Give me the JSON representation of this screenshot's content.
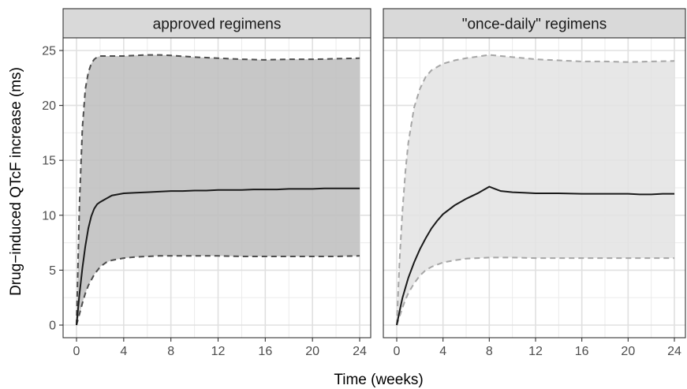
{
  "chart_data": {
    "type": "area",
    "xlabel": "Time (weeks)",
    "ylabel": "Drug−induced QTcF increase (ms)",
    "xlim": [
      0,
      24
    ],
    "ylim": [
      0,
      25
    ],
    "x_ticks": [
      "0",
      "4",
      "8",
      "12",
      "16",
      "20",
      "24"
    ],
    "y_ticks": [
      "0",
      "5",
      "10",
      "15",
      "20",
      "25"
    ],
    "grid": true,
    "panels": [
      {
        "strip_label": "approved regimens",
        "ribbon_color": "#bdbdbd",
        "bound_color": "#4d4d4d",
        "median_color": "#1a1a1a",
        "series": [
          {
            "role": "median",
            "x": [
              0,
              0.25,
              0.5,
              0.75,
              1,
              1.25,
              1.5,
              1.75,
              2,
              2.5,
              3,
              3.5,
              4,
              5,
              6,
              7,
              8,
              9,
              10,
              11,
              12,
              13,
              14,
              15,
              16,
              17,
              18,
              19,
              20,
              21,
              22,
              23,
              24
            ],
            "y": [
              0,
              2.8,
              5.2,
              7.2,
              8.8,
              9.9,
              10.6,
              11.0,
              11.2,
              11.5,
              11.8,
              11.9,
              12.0,
              12.05,
              12.1,
              12.15,
              12.2,
              12.2,
              12.25,
              12.25,
              12.3,
              12.3,
              12.3,
              12.35,
              12.35,
              12.35,
              12.4,
              12.4,
              12.4,
              12.45,
              12.45,
              12.45,
              12.45
            ]
          },
          {
            "role": "upper",
            "x": [
              0,
              0.25,
              0.5,
              0.75,
              1,
              1.25,
              1.5,
              1.75,
              2,
              2.5,
              3,
              4,
              5,
              6,
              7,
              8,
              10,
              12,
              14,
              16,
              18,
              20,
              22,
              24
            ],
            "y": [
              0,
              11.0,
              18.0,
              21.5,
              23.0,
              23.8,
              24.2,
              24.4,
              24.5,
              24.5,
              24.5,
              24.5,
              24.55,
              24.6,
              24.6,
              24.55,
              24.4,
              24.3,
              24.2,
              24.15,
              24.2,
              24.2,
              24.25,
              24.3
            ]
          },
          {
            "role": "lower",
            "x": [
              0,
              0.25,
              0.5,
              0.75,
              1,
              1.5,
              2,
              2.5,
              3,
              4,
              5,
              6,
              7,
              8,
              10,
              12,
              14,
              16,
              18,
              20,
              22,
              24
            ],
            "y": [
              0,
              1.0,
              2.0,
              2.9,
              3.6,
              4.6,
              5.3,
              5.7,
              5.9,
              6.1,
              6.2,
              6.25,
              6.3,
              6.3,
              6.3,
              6.3,
              6.25,
              6.25,
              6.25,
              6.25,
              6.25,
              6.3
            ]
          }
        ]
      },
      {
        "strip_label": "\"once-daily\" regimens",
        "ribbon_color": "#e3e3e3",
        "bound_color": "#a6a6a6",
        "median_color": "#1a1a1a",
        "series": [
          {
            "role": "median",
            "x": [
              0,
              0.25,
              0.5,
              0.75,
              1,
              1.5,
              2,
              2.5,
              3,
              3.5,
              4,
              5,
              6,
              7,
              7.5,
              8,
              8.5,
              9,
              10,
              11,
              12,
              14,
              16,
              18,
              20,
              21,
              22,
              23,
              24
            ],
            "y": [
              0,
              1.3,
              2.5,
              3.4,
              4.3,
              5.7,
              6.9,
              7.9,
              8.8,
              9.5,
              10.1,
              10.9,
              11.5,
              12.0,
              12.3,
              12.6,
              12.4,
              12.2,
              12.1,
              12.05,
              12.0,
              12.0,
              11.95,
              11.95,
              11.95,
              11.9,
              11.9,
              11.95,
              11.95
            ]
          },
          {
            "role": "upper",
            "x": [
              0,
              0.25,
              0.5,
              0.75,
              1,
              1.5,
              2,
              2.5,
              3,
              4,
              5,
              6,
              7,
              8,
              9,
              10,
              12,
              14,
              16,
              18,
              20,
              22,
              24
            ],
            "y": [
              0,
              6.0,
              10.5,
              14.0,
              16.6,
              19.8,
              21.5,
              22.6,
              23.2,
              23.8,
              24.1,
              24.3,
              24.45,
              24.6,
              24.5,
              24.4,
              24.2,
              24.1,
              24.0,
              24.0,
              23.95,
              24.0,
              24.05
            ]
          },
          {
            "role": "lower",
            "x": [
              0,
              0.25,
              0.5,
              0.75,
              1,
              1.5,
              2,
              2.5,
              3,
              4,
              5,
              6,
              7,
              8,
              10,
              12,
              14,
              16,
              18,
              20,
              22,
              24
            ],
            "y": [
              0,
              0.8,
              1.6,
              2.3,
              2.9,
              3.8,
              4.5,
              5.0,
              5.3,
              5.7,
              5.9,
              6.05,
              6.1,
              6.15,
              6.15,
              6.1,
              6.1,
              6.1,
              6.1,
              6.1,
              6.1,
              6.1
            ]
          }
        ]
      }
    ]
  }
}
